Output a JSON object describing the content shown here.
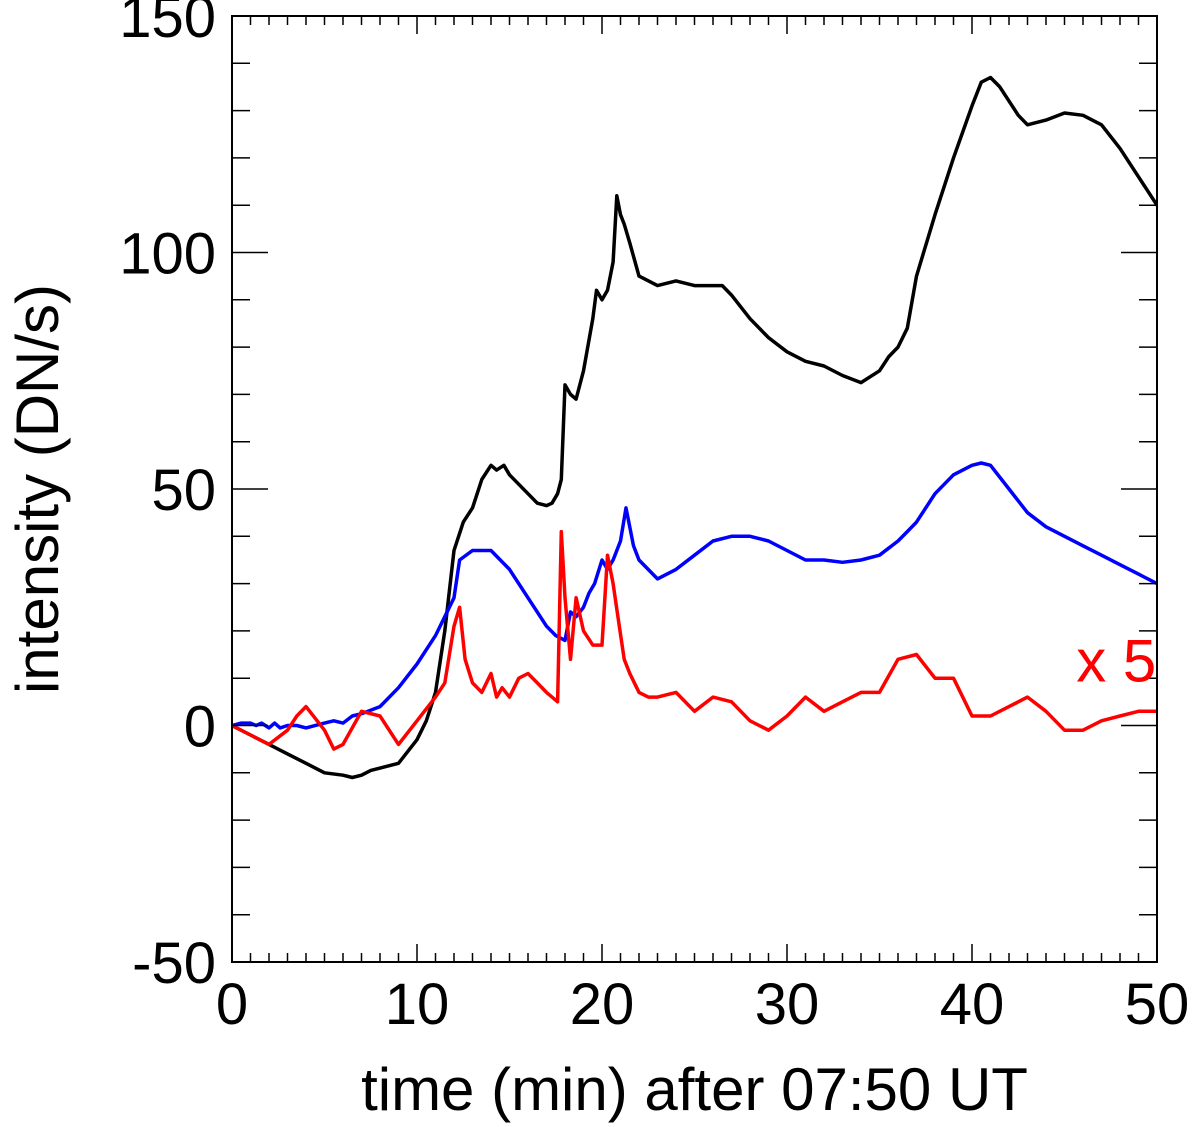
{
  "chart_data": {
    "type": "line",
    "title": "",
    "xlabel": "time (min) after 07:50 UT",
    "ylabel": "intensity (DN/s)",
    "xlim": [
      0,
      50
    ],
    "ylim": [
      -50,
      150
    ],
    "xticks": [
      0,
      10,
      20,
      30,
      40,
      50
    ],
    "xtick_labels": [
      "0",
      "10",
      "20",
      "30",
      "40",
      "50"
    ],
    "yticks": [
      -50,
      0,
      50,
      100,
      150
    ],
    "ytick_labels": [
      "-50",
      "0",
      "50",
      "100",
      "150"
    ],
    "x_minor_step": 1,
    "y_minor_step": 10,
    "grid": false,
    "annotations": [
      {
        "text": "x 5",
        "x": 47.8,
        "y": 13.5,
        "color": "#ff0000"
      }
    ],
    "series": [
      {
        "name": "black",
        "color": "#000000",
        "x": [
          0,
          1,
          2,
          3,
          4,
          5,
          6,
          6.5,
          7,
          7.5,
          8,
          9,
          10,
          10.5,
          11,
          11.5,
          12,
          12.5,
          13,
          13.5,
          14,
          14.3,
          14.7,
          15,
          15.5,
          16,
          16.5,
          17,
          17.3,
          17.6,
          17.8,
          18,
          18.3,
          18.6,
          19,
          19.5,
          19.7,
          20,
          20.3,
          20.6,
          20.8,
          21,
          21.2,
          21.5,
          22,
          23,
          24,
          25,
          26,
          26.5,
          27,
          28,
          29,
          30,
          31,
          32,
          33,
          34,
          35,
          35.5,
          36,
          36.5,
          37,
          38,
          39,
          40,
          40.5,
          41,
          41.5,
          42,
          42.5,
          43,
          44,
          45,
          46,
          47,
          48,
          49,
          50
        ],
        "y": [
          0,
          -2,
          -4,
          -6,
          -8,
          -10,
          -10.5,
          -11,
          -10.5,
          -9.5,
          -9,
          -8,
          -3,
          1,
          7,
          20,
          37,
          43,
          46,
          52,
          55,
          54,
          55,
          53,
          51,
          49,
          47,
          46.5,
          47,
          49,
          52,
          72,
          70,
          69,
          75,
          86,
          92,
          90,
          92,
          98,
          112,
          108,
          106,
          102,
          95,
          93,
          94,
          93,
          93,
          93,
          91,
          86,
          82,
          79,
          77,
          76,
          74,
          72.5,
          75,
          78,
          80,
          84,
          95,
          108,
          120,
          131,
          136,
          137,
          135,
          132,
          129,
          127,
          128,
          129.5,
          129,
          127,
          122,
          116,
          110
        ]
      },
      {
        "name": "blue",
        "color": "#0000ff",
        "x": [
          0,
          0.5,
          1,
          1.3,
          1.6,
          2,
          2.3,
          2.6,
          3,
          3.5,
          4,
          5,
          5.5,
          6,
          6.5,
          7,
          8,
          9,
          10,
          11,
          12,
          12.3,
          13,
          14,
          15,
          16,
          17,
          17.5,
          18,
          18.3,
          18.6,
          19,
          19.3,
          19.6,
          20,
          20.3,
          20.6,
          21,
          21.3,
          21.7,
          22,
          23,
          24,
          25,
          26,
          27,
          28,
          29,
          30,
          31,
          32,
          33,
          34,
          35,
          36,
          36.5,
          37,
          38,
          39,
          40,
          40.5,
          41,
          42,
          43,
          44,
          45,
          46,
          47,
          48,
          49,
          50
        ],
        "y": [
          0,
          0.5,
          0.5,
          0,
          0.5,
          -0.5,
          0.5,
          -0.5,
          0,
          0,
          -0.5,
          0.5,
          1,
          0.5,
          2,
          2.5,
          4,
          8,
          13,
          19,
          27,
          35,
          37,
          37,
          33,
          27,
          21,
          19,
          18,
          24,
          23,
          25,
          28,
          30,
          35,
          33,
          35,
          39,
          46,
          38,
          35,
          31,
          33,
          36,
          39,
          40,
          40,
          39,
          37,
          35,
          35,
          34.5,
          35,
          36,
          39,
          41,
          43,
          49,
          53,
          55,
          55.5,
          55,
          50,
          45,
          42,
          40,
          38,
          36,
          34,
          32,
          30
        ]
      },
      {
        "name": "red (x 5)",
        "color": "#ff0000",
        "x": [
          0,
          1,
          2,
          3,
          3.5,
          4,
          5,
          5.5,
          6,
          7,
          8,
          9,
          10,
          11,
          11.5,
          12,
          12.3,
          12.6,
          13,
          13.5,
          14,
          14.3,
          14.6,
          15,
          15.5,
          16,
          16.5,
          17,
          17.3,
          17.6,
          17.8,
          18,
          18.3,
          18.6,
          19,
          19.5,
          20,
          20.3,
          20.6,
          20.9,
          21.2,
          21.5,
          22,
          22.5,
          23,
          24,
          25,
          26,
          27,
          28,
          29,
          30,
          31,
          32,
          33,
          34,
          35,
          36,
          37,
          38,
          39,
          40,
          41,
          42,
          43,
          44,
          45,
          46,
          47,
          48,
          49,
          50
        ],
        "y": [
          0,
          -2,
          -4,
          -1,
          2,
          4,
          -1,
          -5,
          -4,
          3,
          2,
          -4,
          1,
          6,
          9,
          21,
          25,
          14,
          9,
          7,
          11,
          6,
          8,
          6,
          10,
          11,
          9,
          7,
          6,
          5,
          41,
          27,
          14,
          27,
          20,
          17,
          17,
          36,
          30,
          22,
          14,
          11,
          7,
          6,
          6,
          7,
          3,
          6,
          5,
          1,
          -1,
          2,
          6,
          3,
          5,
          7,
          7,
          14,
          15,
          10,
          10,
          2,
          2,
          4,
          6,
          3,
          -1,
          -1,
          1,
          2,
          3,
          3
        ]
      }
    ]
  }
}
